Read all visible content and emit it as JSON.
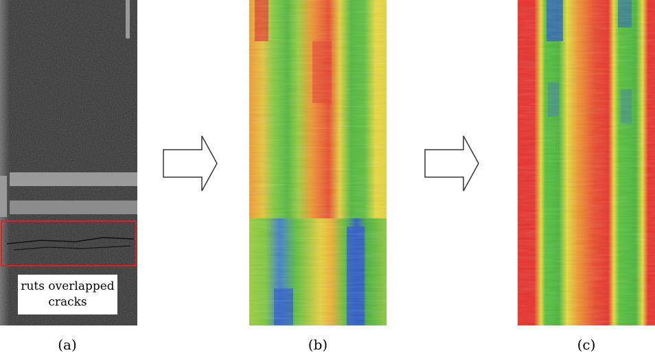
{
  "panels": [
    {
      "id": "a",
      "caption": "(a)",
      "annotation": {
        "line1": "ruts overlapped",
        "line2": "cracks"
      }
    },
    {
      "id": "b",
      "caption": "(b)"
    },
    {
      "id": "c",
      "caption": "(c)"
    }
  ],
  "colors": {
    "pavement": "#2f2f2f",
    "stripe": "#9a9a9a",
    "highlight_box": "#e02020",
    "heat_red": "#e8302a",
    "heat_orange": "#f0962c",
    "heat_yellow": "#e6dc3c",
    "heat_green": "#56c23a",
    "heat_blue": "#2a58c8"
  }
}
